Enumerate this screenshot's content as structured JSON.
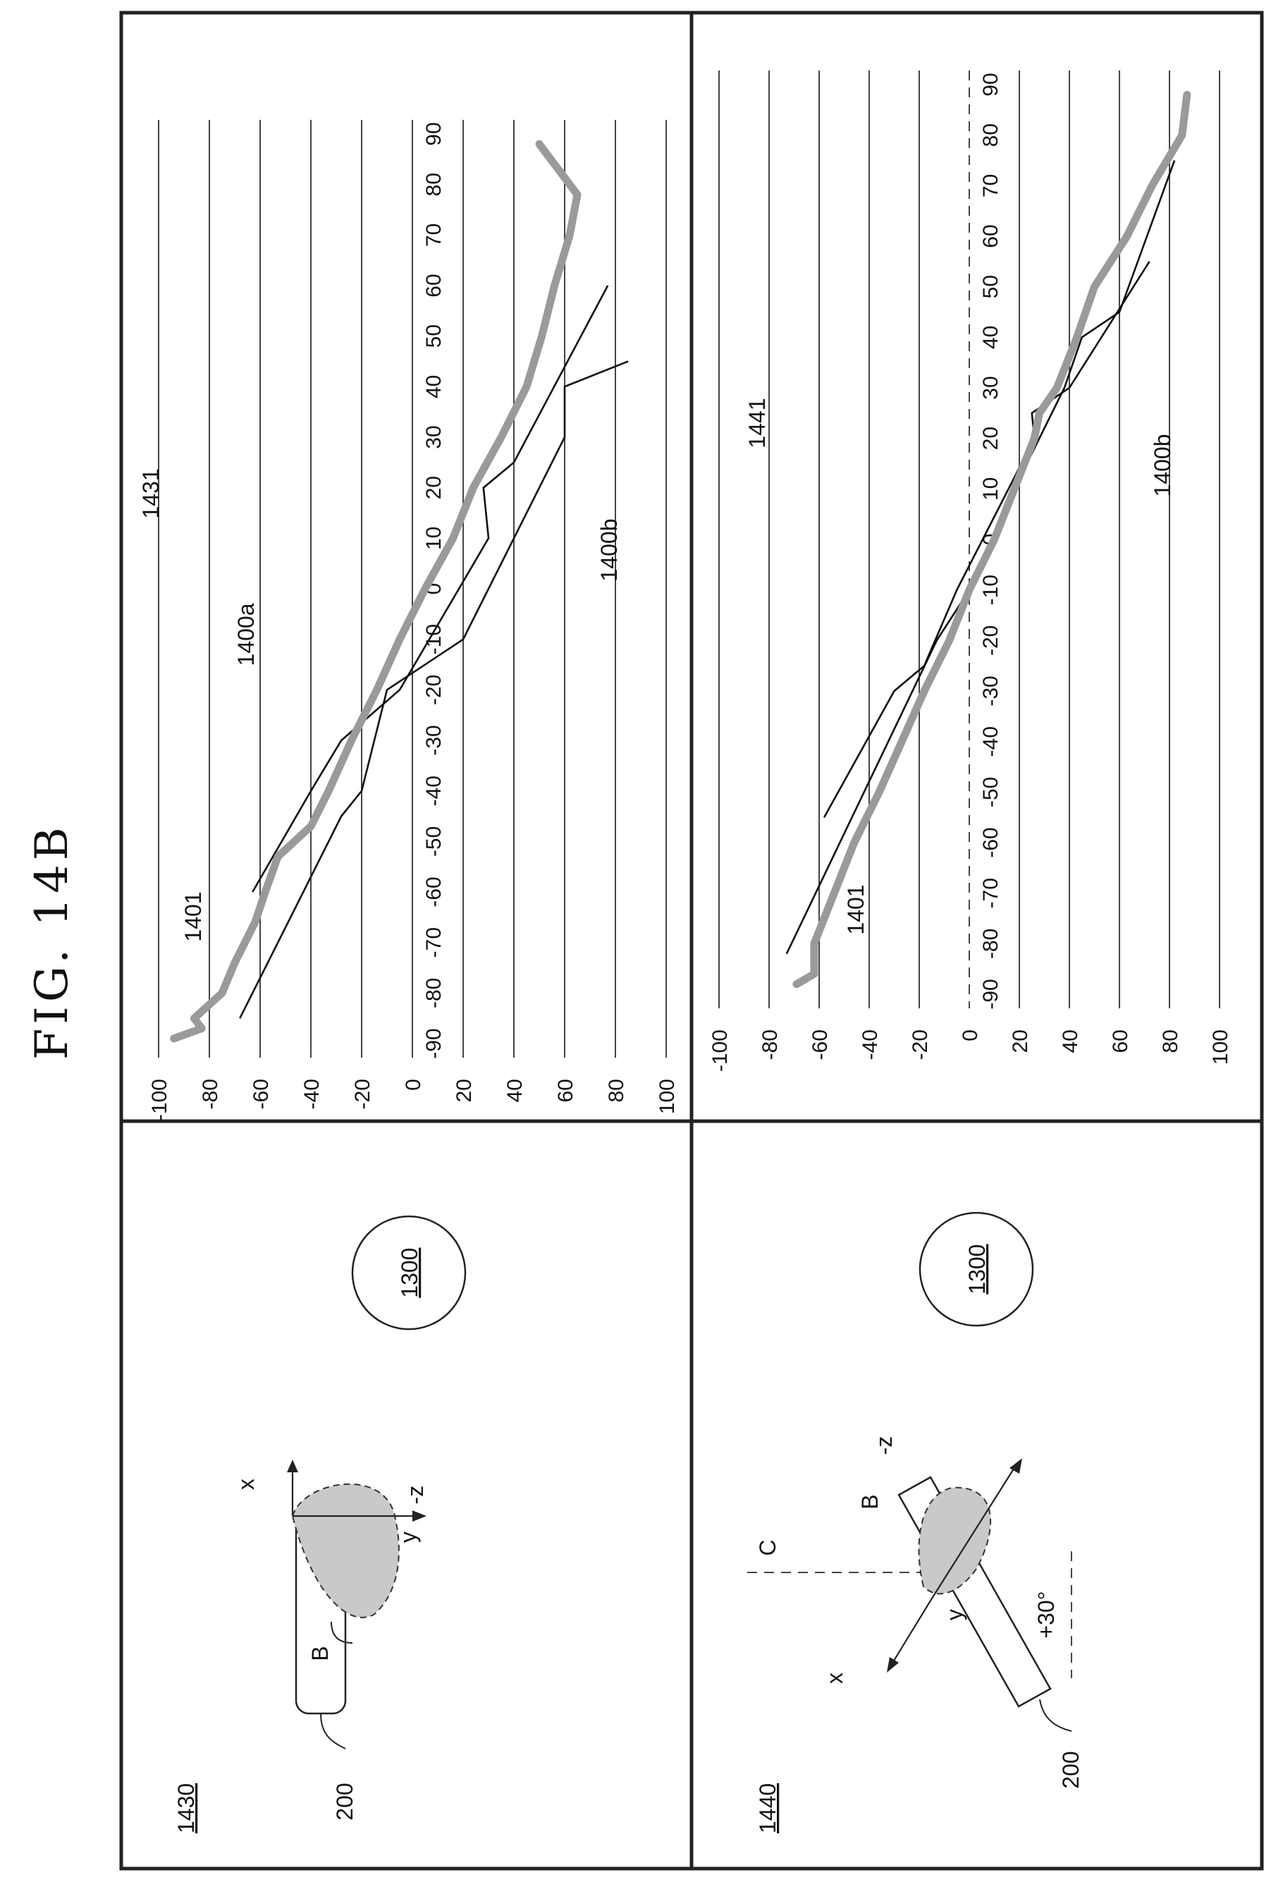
{
  "figure_title": "FIG. 14B",
  "panels": [
    {
      "label": "1430",
      "device_ref": "200",
      "beam_ref": "B",
      "obstacle_ref": "1300",
      "axes": {
        "x": "x",
        "y": "y",
        "z": "-z"
      }
    },
    {
      "label": "1440",
      "device_ref": "200",
      "beam_ref": "B",
      "obstacle_ref": "1300",
      "angle_label": "+30°",
      "center_ref": "C",
      "axes": {
        "x": "x",
        "y": "y",
        "z": "-z"
      }
    }
  ],
  "chart_data": [
    {
      "type": "line",
      "x_ticks": [
        "-90",
        "-80",
        "-70",
        "-60",
        "-50",
        "-40",
        "-30",
        "-20",
        "-10",
        "0",
        "10",
        "20",
        "30",
        "40",
        "50",
        "60",
        "70",
        "80",
        "90"
      ],
      "y_ticks": [
        "100",
        "80",
        "60",
        "40",
        "20",
        "0",
        "-20",
        "-40",
        "-60",
        "-80",
        "-100"
      ],
      "xlim": [
        -90,
        90
      ],
      "ylim": [
        -100,
        100
      ],
      "grid": true,
      "labels": {
        "series_main": "1400a",
        "series_lower": "1400b",
        "measured": "1431",
        "axis_ref": "1401"
      },
      "series": [
        {
          "id": "upper",
          "x": [
            -60,
            -40,
            -30,
            -20,
            10,
            20,
            25,
            60
          ],
          "y": [
            -63,
            -40,
            -28,
            -5,
            30,
            28,
            40,
            77
          ]
        },
        {
          "id": "lower",
          "x": [
            -85,
            -45,
            -40,
            -20,
            -10,
            0,
            30,
            40,
            45
          ],
          "y": [
            -68,
            -28,
            -20,
            -10,
            20,
            30,
            60,
            60,
            85
          ]
        },
        {
          "id": "measured",
          "x": [
            -89,
            -87,
            -85,
            -80,
            -74,
            -66,
            -60,
            -53,
            -47,
            -40,
            -30,
            -20,
            -10,
            0,
            10,
            20,
            30,
            40,
            50,
            60,
            70,
            78,
            88
          ],
          "y": [
            -94,
            -83,
            -86,
            -75,
            -70,
            -62,
            -58,
            -53,
            -40,
            -33,
            -24,
            -14,
            -5,
            5,
            16,
            24,
            35,
            45,
            51,
            56,
            62,
            65,
            50
          ]
        }
      ]
    },
    {
      "type": "line",
      "x_ticks": [
        "-90",
        "-80",
        "-70",
        "-60",
        "-50",
        "-40",
        "-30",
        "-20",
        "-10",
        "0",
        "10",
        "20",
        "30",
        "40",
        "50",
        "60",
        "70",
        "80",
        "90"
      ],
      "y_ticks": [
        "100",
        "80",
        "60",
        "40",
        "20",
        "0",
        "-20",
        "-40",
        "-60",
        "-80",
        "-100"
      ],
      "xlim": [
        -90,
        90
      ],
      "ylim": [
        -100,
        100
      ],
      "grid": true,
      "labels": {
        "series_lower": "1400b",
        "measured": "1441",
        "axis_ref": "1401"
      },
      "series": [
        {
          "id": "upper",
          "x": [
            -55,
            -30,
            -25,
            -10,
            20,
            25,
            30,
            55
          ],
          "y": [
            -58,
            -30,
            -18,
            -5,
            26,
            25,
            40,
            72
          ]
        },
        {
          "id": "lower",
          "x": [
            -82,
            -20,
            -10,
            10,
            30,
            40,
            45,
            75
          ],
          "y": [
            -73,
            -13,
            0,
            18,
            38,
            45,
            60,
            82
          ]
        },
        {
          "id": "measured",
          "x": [
            -88,
            -86,
            -80,
            -70,
            -60,
            -50,
            -40,
            -30,
            -20,
            -10,
            0,
            10,
            20,
            25,
            30,
            40,
            50,
            60,
            70,
            80,
            88
          ],
          "y": [
            -69,
            -62,
            -62,
            -54,
            -46,
            -36,
            -27,
            -18,
            -8,
            0,
            10,
            18,
            26,
            28,
            35,
            43,
            50,
            63,
            73,
            85,
            87
          ]
        }
      ]
    }
  ]
}
